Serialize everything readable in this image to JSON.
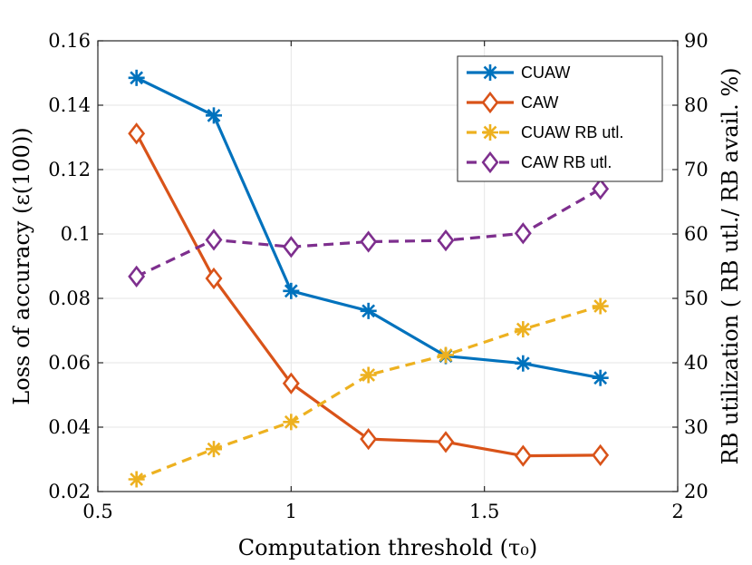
{
  "chart_data": {
    "type": "line",
    "title": "",
    "xlabel": "Computation threshold (τ₀)",
    "ylabel_left": "Loss of accuracy (ε(100))",
    "ylabel_right": "RB utilization ( RB utl./ RB avail. %)",
    "xlim": [
      0.5,
      2
    ],
    "ylim_left": [
      0.02,
      0.16
    ],
    "ylim_right": [
      20,
      90
    ],
    "x_ticks": [
      0.5,
      1,
      1.5,
      2
    ],
    "x_tick_labels": [
      "0.5",
      "1",
      "1.5",
      "2"
    ],
    "y_left_ticks": [
      0.02,
      0.04,
      0.06,
      0.08,
      0.1,
      0.12,
      0.14,
      0.16
    ],
    "y_left_tick_labels": [
      "0.02",
      "0.04",
      "0.06",
      "0.08",
      "0.1",
      "0.12",
      "0.14",
      "0.16"
    ],
    "y_right_ticks": [
      20,
      30,
      40,
      50,
      60,
      70,
      80,
      90
    ],
    "y_right_tick_labels": [
      "20",
      "30",
      "40",
      "50",
      "60",
      "70",
      "80",
      "90"
    ],
    "grid": true,
    "legend_position": "top-right",
    "x": [
      0.6,
      0.8,
      1.0,
      1.2,
      1.4,
      1.6,
      1.8
    ],
    "series": [
      {
        "name": "CUAW",
        "axis": "left",
        "color": "#0072BD",
        "marker": "asterisk",
        "dash": "solid",
        "values": [
          0.1485,
          0.1368,
          0.0823,
          0.0761,
          0.0621,
          0.0598,
          0.0553
        ]
      },
      {
        "name": "CAW",
        "axis": "left",
        "color": "#D95319",
        "marker": "diamond",
        "dash": "solid",
        "values": [
          0.1312,
          0.0862,
          0.0536,
          0.0363,
          0.0354,
          0.0311,
          0.0313
        ]
      },
      {
        "name": "CUAW RB utl.",
        "axis": "right",
        "color": "#EDB120",
        "marker": "asterisk",
        "dash": "dashed",
        "values": [
          21.9,
          26.6,
          30.8,
          38.1,
          41.2,
          45.2,
          48.8
        ]
      },
      {
        "name": "CAW RB utl.",
        "axis": "right",
        "color": "#7E2F8E",
        "marker": "diamond",
        "dash": "dashed",
        "values": [
          53.4,
          59.1,
          58.0,
          58.8,
          59.0,
          60.1,
          67.0
        ]
      }
    ]
  }
}
